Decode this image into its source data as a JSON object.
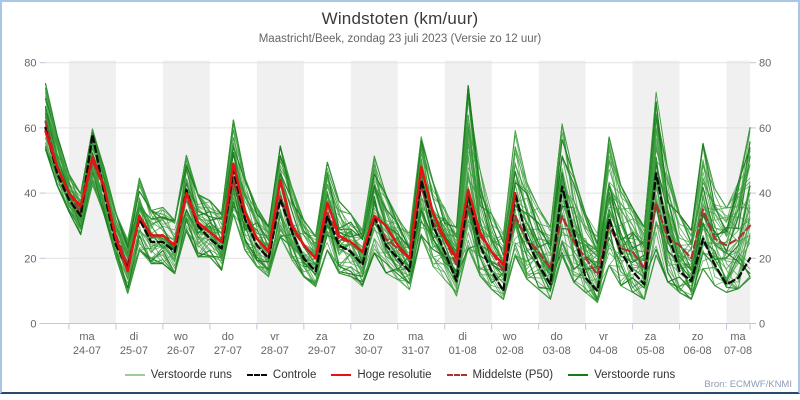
{
  "header": {
    "title": "Windstoten (km/uur)",
    "subtitle": "Maastricht/Beek, zondag 23 juli 2023 (Versie zo 12 uur)"
  },
  "source": {
    "label": "Bron: ECMWF/KNMI"
  },
  "colors": {
    "frame_border": "#a9c6e8",
    "frame_bottom": "#2a4a6b",
    "band_gray": "#f0f0f0",
    "grid": "#e2e2e2",
    "axis_tick": "#b9cadf",
    "axis_label": "#666666",
    "member_green": "#3d9e3d",
    "member_dark_green": "#1b7c20",
    "control_black": "#0a0a0a",
    "hires_red": "#e61212",
    "p50_dark_red": "#aa3434",
    "legend_light_green": "#9ccb9c"
  },
  "legend": {
    "items": [
      {
        "label": "Verstoorde runs",
        "color": "#9ccb9c",
        "dash": false
      },
      {
        "label": "Controle",
        "color": "#0a0a0a",
        "dash": true
      },
      {
        "label": "Hoge resolutie",
        "color": "#e61212",
        "dash": false
      },
      {
        "label": "Middelste (P50)",
        "color": "#aa3434",
        "dash": true
      },
      {
        "label": "Verstoorde runs",
        "color": "#157a1a",
        "dash": false
      }
    ]
  },
  "chart_data": {
    "type": "line",
    "title": "Windstoten (km/uur)",
    "ylabel": "km/uur",
    "ylim": [
      0,
      80
    ],
    "yticks": [
      0,
      20,
      40,
      60,
      80
    ],
    "grid": "horizontal",
    "legend_position": "bottom",
    "start_label": "zo 23-07 12:00",
    "time_step_hours": 6,
    "x_days": [
      {
        "dow": "ma",
        "date": "24-07",
        "shaded": true
      },
      {
        "dow": "di",
        "date": "25-07",
        "shaded": false
      },
      {
        "dow": "wo",
        "date": "26-07",
        "shaded": true
      },
      {
        "dow": "do",
        "date": "27-07",
        "shaded": false
      },
      {
        "dow": "vr",
        "date": "28-07",
        "shaded": true
      },
      {
        "dow": "za",
        "date": "29-07",
        "shaded": false
      },
      {
        "dow": "zo",
        "date": "30-07",
        "shaded": true
      },
      {
        "dow": "ma",
        "date": "31-07",
        "shaded": false
      },
      {
        "dow": "di",
        "date": "01-08",
        "shaded": true
      },
      {
        "dow": "wo",
        "date": "02-08",
        "shaded": false
      },
      {
        "dow": "do",
        "date": "03-08",
        "shaded": true
      },
      {
        "dow": "vr",
        "date": "04-08",
        "shaded": false
      },
      {
        "dow": "za",
        "date": "05-08",
        "shaded": true
      },
      {
        "dow": "zo",
        "date": "06-08",
        "shaded": false
      },
      {
        "dow": "ma",
        "date": "07-08",
        "shaded": true
      }
    ],
    "series": [
      {
        "name": "Controle",
        "color": "#0a0a0a",
        "dash": true,
        "values": [
          60,
          46,
          38,
          33,
          58,
          40,
          24,
          17,
          32,
          25,
          25,
          22,
          41,
          30,
          26,
          23,
          47,
          32,
          24,
          20,
          38,
          28,
          20,
          16,
          33,
          24,
          22,
          18,
          33,
          24,
          20,
          16,
          44,
          30,
          22,
          13,
          40,
          24,
          16,
          10,
          40,
          26,
          18,
          12,
          42,
          28,
          14,
          10,
          32,
          22,
          16,
          12,
          46,
          28,
          16,
          13,
          26,
          18,
          12,
          14,
          20
        ]
      },
      {
        "name": "Hoge resolutie",
        "color": "#e61212",
        "dash": false,
        "values": [
          59,
          48,
          40,
          36,
          51,
          42,
          26,
          16,
          33,
          27,
          27,
          24,
          40,
          31,
          28,
          25,
          49,
          34,
          26,
          22,
          44,
          30,
          24,
          20,
          37,
          27,
          25,
          22,
          33,
          30,
          24,
          20,
          48,
          34,
          26,
          20,
          41,
          28,
          22,
          18,
          40
        ]
      },
      {
        "name": "Middelste (P50)",
        "color": "#aa3434",
        "dash": true,
        "values": [
          62,
          48,
          40,
          34,
          50,
          41,
          27,
          18,
          33,
          27,
          27,
          24,
          39,
          30,
          28,
          25,
          44,
          32,
          26,
          22,
          39,
          29,
          24,
          20,
          34,
          26,
          25,
          22,
          32,
          26,
          23,
          20,
          42,
          31,
          26,
          18,
          36,
          27,
          22,
          16,
          33,
          26,
          22,
          17,
          33,
          25,
          20,
          15,
          30,
          23,
          22,
          17,
          37,
          26,
          24,
          20,
          35,
          26,
          24,
          26,
          30
        ]
      }
    ],
    "ensemble": {
      "name": "Verstoorde runs",
      "count": 50,
      "seed": 7,
      "min": [
        53,
        42,
        34,
        27,
        42,
        33,
        20,
        9,
        22,
        18,
        18,
        15,
        28,
        20,
        20,
        16,
        33,
        22,
        17,
        14,
        26,
        19,
        14,
        11,
        22,
        15,
        14,
        11,
        21,
        15,
        13,
        10,
        26,
        17,
        13,
        8,
        22,
        14,
        10,
        7,
        20,
        13,
        10,
        7,
        20,
        12,
        9,
        6,
        17,
        11,
        9,
        7,
        20,
        12,
        9,
        7,
        16,
        11,
        9,
        10,
        13
      ],
      "max": [
        74,
        58,
        46,
        40,
        60,
        48,
        34,
        26,
        45,
        35,
        36,
        32,
        52,
        40,
        38,
        34,
        63,
        45,
        36,
        30,
        55,
        42,
        32,
        27,
        50,
        38,
        34,
        29,
        52,
        40,
        33,
        28,
        58,
        44,
        36,
        30,
        74,
        48,
        34,
        28,
        60,
        44,
        36,
        30,
        62,
        46,
        34,
        28,
        58,
        43,
        36,
        30,
        72,
        48,
        34,
        29,
        56,
        42,
        36,
        44,
        61
      ]
    }
  }
}
